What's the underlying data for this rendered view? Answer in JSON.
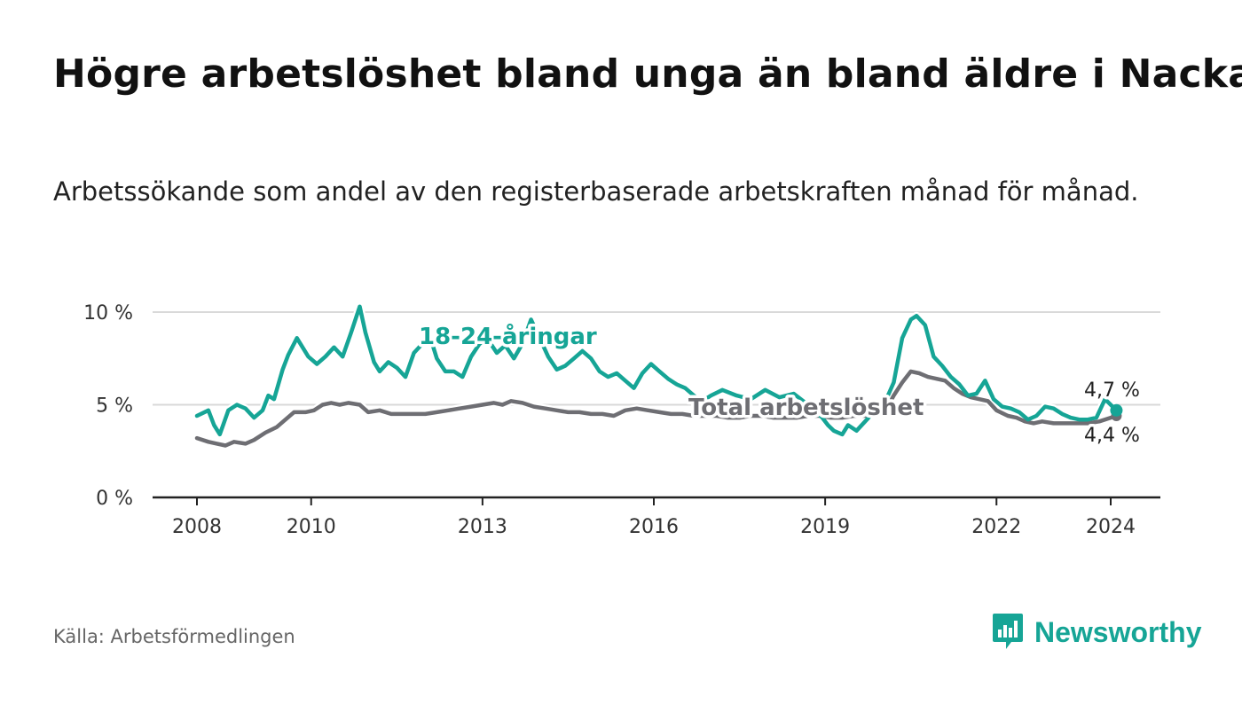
{
  "title": "Högre arbetslöshet bland unga än bland äldre i Nacka",
  "subtitle": "Arbetssökande som andel av den registerbaserade arbetskraften månad för månad.",
  "source": "Källa: Arbetsförmedlingen",
  "brand": {
    "name": "Newsworthy",
    "icon": "newsworthy-logo-icon"
  },
  "colors": {
    "youth": "#16a596",
    "total": "#6e6e73",
    "axis": "#222222",
    "grid": "#d9d9d9"
  },
  "chart_data": {
    "type": "line",
    "title": "Högre arbetslöshet bland unga än bland äldre i Nacka",
    "xlabel": "",
    "ylabel": "",
    "xlim": [
      2007.5,
      2024.5
    ],
    "ylim": [
      0,
      10
    ],
    "y_ticks": [
      0,
      5,
      10
    ],
    "y_tick_labels": [
      "0 %",
      "5 %",
      "10 %"
    ],
    "x_ticks": [
      2008,
      2010,
      2013,
      2016,
      2019,
      2022,
      2024
    ],
    "x_tick_labels": [
      "2008",
      "2010",
      "2013",
      "2016",
      "2019",
      "2022",
      "2024"
    ],
    "grid": true,
    "series": [
      {
        "name": "18-24-åringar",
        "label": "18-24-åringar",
        "end_label": "4,7 %",
        "x": [
          2008.0,
          2008.2,
          2008.3,
          2008.4,
          2008.55,
          2008.7,
          2008.85,
          2009.0,
          2009.15,
          2009.25,
          2009.35,
          2009.5,
          2009.6,
          2009.75,
          2009.95,
          2010.1,
          2010.25,
          2010.4,
          2010.55,
          2010.7,
          2010.85,
          2010.95,
          2011.1,
          2011.2,
          2011.35,
          2011.5,
          2011.65,
          2011.8,
          2011.95,
          2012.1,
          2012.2,
          2012.35,
          2012.5,
          2012.65,
          2012.8,
          2012.95,
          2013.1,
          2013.25,
          2013.4,
          2013.55,
          2013.7,
          2013.85,
          2014.0,
          2014.15,
          2014.3,
          2014.45,
          2014.6,
          2014.75,
          2014.9,
          2015.05,
          2015.2,
          2015.35,
          2015.5,
          2015.65,
          2015.8,
          2015.95,
          2016.1,
          2016.25,
          2016.4,
          2016.55,
          2016.7,
          2016.85,
          2017.0,
          2017.2,
          2017.45,
          2017.7,
          2017.95,
          2018.2,
          2018.45,
          2018.7,
          2018.95,
          2019.05,
          2019.15,
          2019.3,
          2019.4,
          2019.55,
          2019.7,
          2019.85,
          2019.95,
          2020.1,
          2020.2,
          2020.35,
          2020.5,
          2020.6,
          2020.75,
          2020.9,
          2021.05,
          2021.2,
          2021.35,
          2021.5,
          2021.65,
          2021.8,
          2021.95,
          2022.1,
          2022.25,
          2022.4,
          2022.55,
          2022.7,
          2022.85,
          2023.0,
          2023.15,
          2023.3,
          2023.45,
          2023.6,
          2023.75,
          2023.9,
          2024.0,
          2024.1
        ],
        "y": [
          4.4,
          4.7,
          3.9,
          3.4,
          4.7,
          5.0,
          4.8,
          4.3,
          4.7,
          5.5,
          5.3,
          6.9,
          7.7,
          8.6,
          7.6,
          7.2,
          7.6,
          8.1,
          7.6,
          8.9,
          10.3,
          8.9,
          7.3,
          6.8,
          7.3,
          7.0,
          6.5,
          7.8,
          8.3,
          8.5,
          7.5,
          6.8,
          6.8,
          6.5,
          7.6,
          8.3,
          8.5,
          7.8,
          8.2,
          7.5,
          8.3,
          9.6,
          8.6,
          7.6,
          6.9,
          7.1,
          7.5,
          7.9,
          7.5,
          6.8,
          6.5,
          6.7,
          6.3,
          5.9,
          6.7,
          7.2,
          6.8,
          6.4,
          6.1,
          5.9,
          5.5,
          5.2,
          5.5,
          5.8,
          5.5,
          5.3,
          5.8,
          5.4,
          5.6,
          5.0,
          4.3,
          3.9,
          3.6,
          3.4,
          3.9,
          3.6,
          4.1,
          4.6,
          5.0,
          5.5,
          6.2,
          8.6,
          9.6,
          9.8,
          9.3,
          7.6,
          7.1,
          6.5,
          6.1,
          5.5,
          5.6,
          6.3,
          5.3,
          4.9,
          4.8,
          4.6,
          4.2,
          4.4,
          4.9,
          4.8,
          4.5,
          4.3,
          4.2,
          4.2,
          4.3,
          5.3,
          5.0,
          4.7
        ]
      },
      {
        "name": "Total arbetslöshet",
        "label": "Total arbetslöshet",
        "end_label": "4,4 %",
        "x": [
          2008.0,
          2008.2,
          2008.35,
          2008.5,
          2008.65,
          2008.85,
          2009.0,
          2009.2,
          2009.4,
          2009.55,
          2009.7,
          2009.9,
          2010.05,
          2010.2,
          2010.35,
          2010.5,
          2010.65,
          2010.85,
          2011.0,
          2011.2,
          2011.4,
          2011.6,
          2011.8,
          2012.0,
          2012.2,
          2012.4,
          2012.6,
          2012.8,
          2013.0,
          2013.2,
          2013.35,
          2013.5,
          2013.7,
          2013.9,
          2014.1,
          2014.3,
          2014.5,
          2014.7,
          2014.9,
          2015.1,
          2015.3,
          2015.5,
          2015.7,
          2015.9,
          2016.1,
          2016.3,
          2016.5,
          2016.7,
          2016.9,
          2017.1,
          2017.3,
          2017.5,
          2017.7,
          2017.9,
          2018.1,
          2018.3,
          2018.5,
          2018.7,
          2018.9,
          2019.1,
          2019.3,
          2019.5,
          2019.7,
          2019.9,
          2020.1,
          2020.2,
          2020.35,
          2020.5,
          2020.65,
          2020.8,
          2020.95,
          2021.1,
          2021.25,
          2021.4,
          2021.55,
          2021.7,
          2021.85,
          2022.0,
          2022.2,
          2022.35,
          2022.5,
          2022.65,
          2022.8,
          2023.0,
          2023.2,
          2023.4,
          2023.6,
          2023.8,
          2024.0,
          2024.1
        ],
        "y": [
          3.2,
          3.0,
          2.9,
          2.8,
          3.0,
          2.9,
          3.1,
          3.5,
          3.8,
          4.2,
          4.6,
          4.6,
          4.7,
          5.0,
          5.1,
          5.0,
          5.1,
          5.0,
          4.6,
          4.7,
          4.5,
          4.5,
          4.5,
          4.5,
          4.6,
          4.7,
          4.8,
          4.9,
          5.0,
          5.1,
          5.0,
          5.2,
          5.1,
          4.9,
          4.8,
          4.7,
          4.6,
          4.6,
          4.5,
          4.5,
          4.4,
          4.7,
          4.8,
          4.7,
          4.6,
          4.5,
          4.5,
          4.4,
          4.4,
          4.4,
          4.3,
          4.3,
          4.4,
          4.4,
          4.3,
          4.3,
          4.3,
          4.4,
          4.4,
          4.3,
          4.3,
          4.4,
          4.4,
          4.5,
          4.9,
          5.5,
          6.2,
          6.8,
          6.7,
          6.5,
          6.4,
          6.3,
          5.9,
          5.6,
          5.4,
          5.3,
          5.2,
          4.7,
          4.4,
          4.3,
          4.1,
          4.0,
          4.1,
          4.0,
          4.0,
          4.0,
          4.0,
          4.1,
          4.3,
          4.4
        ]
      }
    ]
  }
}
